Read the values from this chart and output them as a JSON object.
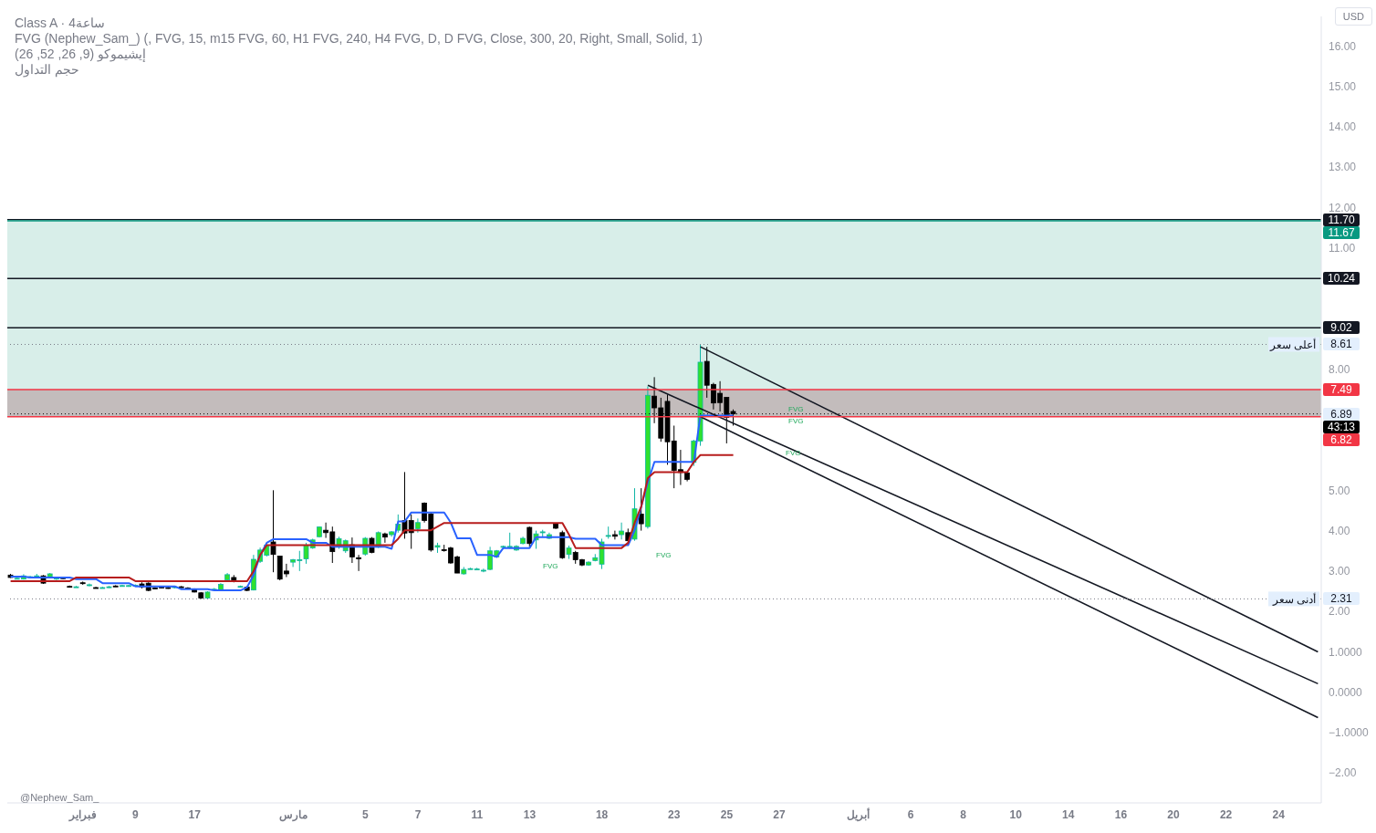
{
  "chart_data": {
    "type": "candlestick",
    "title": "Class A · 4ساعة",
    "subtitle": "FVG (Nephew_Sam_) (, FVG, 15, m15 FVG, 60, H1 FVG, 240, H4 FVG, D, D FVG, Close, 300, 20, Right, Small, Solid, 1)",
    "categories": [
      null,
      null,
      null,
      null,
      null,
      null,
      null,
      null,
      null,
      null,
      null,
      "فبراير",
      null,
      null,
      null,
      null,
      null,
      null,
      null,
      "9",
      null,
      null,
      null,
      null,
      null,
      null,
      null,
      null,
      "17",
      null,
      null,
      null,
      null,
      null,
      null,
      null,
      null,
      null,
      null,
      null,
      null,
      null,
      null,
      "مارس",
      null,
      null,
      null,
      null,
      null,
      null,
      null,
      null,
      null,
      null,
      "5",
      null,
      null,
      null,
      null,
      null,
      null,
      null,
      "7",
      null,
      null,
      null,
      null,
      null,
      null,
      null,
      null,
      "11",
      null,
      null,
      null,
      null,
      null,
      null,
      null,
      "13",
      null,
      null,
      null,
      null,
      null,
      null,
      null,
      null,
      null,
      null,
      "18",
      null,
      null,
      null,
      null,
      null,
      null,
      null,
      null,
      null,
      null,
      "23",
      null,
      null,
      null,
      null,
      null,
      null,
      null,
      "25",
      null,
      null,
      null,
      null,
      null,
      null,
      null,
      "27",
      null,
      null,
      null,
      null,
      null,
      null,
      null,
      null,
      null,
      null,
      null,
      "أبريل",
      null,
      null,
      null,
      null,
      null,
      null,
      null,
      "6",
      null,
      null,
      null,
      null,
      null,
      null,
      null,
      "8",
      null,
      null,
      null,
      null,
      null,
      null,
      null,
      "10",
      null,
      null,
      null,
      null,
      null,
      null,
      null,
      "14",
      null,
      null,
      null,
      null,
      null,
      null,
      null,
      "16",
      null,
      null,
      null,
      null,
      null,
      null,
      null,
      "20",
      null,
      null,
      null,
      null,
      null,
      null,
      null,
      "22",
      null,
      null,
      null,
      null,
      null,
      null,
      null,
      "24",
      null,
      null,
      null,
      null,
      null,
      null
    ],
    "ohlc": [
      [
        2.9,
        2.93,
        2.83,
        2.84
      ],
      [
        2.82,
        2.84,
        2.8,
        2.82
      ],
      [
        2.8,
        2.92,
        2.79,
        2.88
      ],
      [
        2.86,
        2.88,
        2.84,
        2.86
      ],
      [
        2.88,
        2.93,
        2.85,
        2.88
      ],
      [
        2.88,
        2.9,
        2.68,
        2.7
      ],
      [
        2.86,
        2.95,
        2.84,
        2.93
      ],
      [
        2.8,
        2.86,
        2.78,
        2.84
      ],
      [
        2.84,
        2.86,
        2.8,
        2.81
      ],
      [
        2.62,
        2.64,
        2.59,
        2.61
      ],
      [
        2.61,
        2.63,
        2.59,
        2.61
      ],
      [
        2.71,
        2.74,
        2.66,
        2.7
      ],
      [
        2.66,
        2.69,
        2.62,
        2.66
      ],
      [
        2.59,
        2.61,
        2.57,
        2.58
      ],
      [
        2.59,
        2.61,
        2.57,
        2.59
      ],
      [
        2.61,
        2.63,
        2.58,
        2.61
      ],
      [
        2.63,
        2.65,
        2.61,
        2.62
      ],
      [
        2.64,
        2.66,
        2.62,
        2.64
      ],
      [
        2.63,
        2.66,
        2.61,
        2.64
      ],
      [
        2.64,
        2.67,
        2.62,
        2.65
      ],
      [
        2.68,
        2.72,
        2.57,
        2.6
      ],
      [
        2.7,
        2.72,
        2.5,
        2.52
      ],
      [
        2.58,
        2.6,
        2.55,
        2.57
      ],
      [
        2.6,
        2.62,
        2.57,
        2.59
      ],
      [
        2.59,
        2.61,
        2.56,
        2.58
      ],
      [
        2.6,
        2.63,
        2.57,
        2.61
      ],
      [
        2.61,
        2.63,
        2.58,
        2.6
      ],
      [
        2.58,
        2.6,
        2.55,
        2.57
      ],
      [
        2.55,
        2.57,
        2.47,
        2.48
      ],
      [
        2.46,
        2.48,
        2.31,
        2.33
      ],
      [
        2.33,
        2.5,
        2.31,
        2.48
      ],
      [
        2.55,
        2.58,
        2.53,
        2.55
      ],
      [
        2.53,
        2.7,
        2.5,
        2.67
      ],
      [
        2.78,
        2.95,
        2.76,
        2.91
      ],
      [
        2.84,
        2.9,
        2.72,
        2.74
      ],
      [
        2.62,
        2.64,
        2.6,
        2.62
      ],
      [
        2.6,
        2.63,
        2.5,
        2.52
      ],
      [
        2.53,
        3.4,
        2.52,
        3.29
      ],
      [
        3.24,
        3.58,
        3.2,
        3.52
      ],
      [
        3.39,
        3.66,
        3.36,
        3.64
      ],
      [
        3.72,
        5.0,
        2.97,
        3.41
      ],
      [
        3.37,
        3.37,
        2.77,
        2.8
      ],
      [
        3.0,
        3.18,
        2.85,
        2.93
      ],
      [
        3.22,
        3.3,
        3.1,
        3.28
      ],
      [
        3.27,
        3.5,
        3.0,
        3.28
      ],
      [
        3.3,
        3.7,
        3.18,
        3.64
      ],
      [
        3.57,
        3.8,
        3.55,
        3.77
      ],
      [
        3.85,
        4.1,
        3.83,
        4.09
      ],
      [
        4.01,
        4.2,
        3.82,
        3.95
      ],
      [
        3.97,
        4.1,
        3.2,
        3.48
      ],
      [
        3.6,
        3.85,
        3.55,
        3.8
      ],
      [
        3.5,
        3.78,
        3.45,
        3.75
      ],
      [
        3.65,
        3.83,
        3.2,
        3.35
      ],
      [
        3.33,
        3.4,
        3.0,
        3.3
      ],
      [
        3.42,
        3.84,
        3.38,
        3.81
      ],
      [
        3.81,
        3.84,
        3.44,
        3.46
      ],
      [
        3.59,
        3.98,
        3.57,
        3.95
      ],
      [
        3.92,
        3.95,
        3.7,
        3.84
      ],
      [
        3.9,
        3.99,
        3.85,
        3.97
      ],
      [
        4.01,
        4.4,
        3.95,
        4.16
      ],
      [
        4.25,
        5.45,
        3.8,
        3.94
      ],
      [
        4.25,
        4.4,
        3.55,
        3.95
      ],
      [
        4.05,
        4.3,
        3.95,
        4.2
      ],
      [
        4.68,
        4.7,
        4.2,
        4.25
      ],
      [
        4.41,
        4.45,
        3.48,
        3.52
      ],
      [
        3.59,
        3.7,
        3.45,
        3.63
      ],
      [
        3.53,
        3.65,
        3.48,
        3.52
      ],
      [
        3.57,
        3.6,
        3.18,
        3.2
      ],
      [
        3.35,
        3.38,
        2.95,
        2.95
      ],
      [
        2.93,
        3.1,
        2.91,
        3.04
      ],
      [
        3.06,
        3.08,
        3.04,
        3.06
      ],
      [
        3.05,
        3.08,
        3.03,
        3.05
      ],
      [
        3.02,
        3.06,
        2.97,
        3.02
      ],
      [
        3.04,
        3.6,
        3.02,
        3.5
      ],
      [
        3.35,
        3.52,
        3.33,
        3.5
      ],
      [
        3.61,
        3.63,
        3.59,
        3.61
      ],
      [
        3.61,
        3.95,
        3.55,
        3.61
      ],
      [
        3.52,
        3.64,
        3.5,
        3.61
      ],
      [
        3.68,
        3.85,
        3.66,
        3.81
      ],
      [
        4.08,
        4.1,
        3.6,
        3.68
      ],
      [
        3.77,
        4.0,
        3.55,
        3.92
      ],
      [
        3.97,
        4.02,
        3.83,
        3.97
      ],
      [
        3.81,
        3.95,
        3.79,
        3.9
      ],
      [
        4.17,
        4.19,
        4.04,
        4.06
      ],
      [
        3.95,
        4.0,
        3.3,
        3.33
      ],
      [
        3.41,
        3.63,
        3.3,
        3.57
      ],
      [
        3.46,
        3.5,
        3.18,
        3.28
      ],
      [
        3.28,
        3.3,
        3.12,
        3.15
      ],
      [
        3.15,
        3.24,
        3.13,
        3.22
      ],
      [
        3.26,
        3.42,
        3.24,
        3.33
      ],
      [
        3.17,
        3.8,
        3.05,
        3.72
      ],
      [
        3.88,
        4.1,
        3.8,
        3.88
      ],
      [
        3.9,
        4.0,
        3.78,
        3.86
      ],
      [
        3.9,
        4.2,
        3.78,
        3.99
      ],
      [
        3.95,
        4.05,
        3.75,
        3.75
      ],
      [
        3.79,
        5.05,
        3.75,
        4.54
      ],
      [
        4.41,
        5.05,
        4.0,
        4.17
      ],
      [
        4.1,
        7.57,
        4.05,
        7.35
      ],
      [
        7.33,
        7.8,
        6.66,
        7.04
      ],
      [
        7.04,
        7.29,
        6.2,
        6.29
      ],
      [
        7.2,
        7.37,
        5.63,
        6.2
      ],
      [
        6.22,
        6.6,
        5.05,
        5.49
      ],
      [
        5.51,
        6.0,
        5.13,
        5.44
      ],
      [
        5.43,
        5.44,
        5.22,
        5.27
      ],
      [
        5.69,
        6.25,
        5.6,
        6.22
      ],
      [
        6.22,
        8.61,
        6.1,
        8.17
      ],
      [
        8.19,
        8.55,
        7.29,
        7.6
      ],
      [
        7.62,
        7.66,
        7.0,
        7.16
      ],
      [
        7.4,
        7.7,
        6.95,
        7.17
      ],
      [
        7.3,
        7.3,
        6.16,
        6.8
      ],
      [
        6.95,
        7.0,
        6.6,
        6.89
      ],
      null,
      null,
      null,
      null,
      null,
      null,
      null,
      null,
      null,
      null,
      null,
      null,
      null,
      null,
      null,
      null,
      null,
      null,
      null,
      null,
      null,
      null,
      null,
      null,
      null,
      null,
      null,
      null,
      null,
      null,
      null,
      null,
      null,
      null,
      null,
      null,
      null,
      null,
      null,
      null,
      null,
      null,
      null,
      null,
      null,
      null,
      null,
      null,
      null,
      null,
      null,
      null,
      null,
      null,
      null,
      null,
      null,
      null,
      null,
      null,
      null,
      null,
      null,
      null,
      null,
      null,
      null,
      null,
      null,
      null,
      null,
      null,
      null,
      null,
      null,
      null,
      null,
      null,
      null,
      null,
      null,
      null,
      null,
      null,
      null,
      null,
      null,
      null,
      null
    ],
    "series": [
      {
        "type": "line",
        "color": "#2962ff",
        "values": [
          2.86,
          2.86,
          2.86,
          2.84,
          2.84,
          2.84,
          2.84,
          2.84,
          2.84,
          2.84,
          2.8,
          2.8,
          2.8,
          2.8,
          2.7,
          2.7,
          2.7,
          2.7,
          2.7,
          2.62,
          2.62,
          2.62,
          2.62,
          2.62,
          2.62,
          2.62,
          2.55,
          2.55,
          2.55,
          2.55,
          2.55,
          2.52,
          2.52,
          2.52,
          2.52,
          2.52,
          2.6,
          2.9,
          3.4,
          3.7,
          3.79,
          3.79,
          3.79,
          3.79,
          3.79,
          3.79,
          3.7,
          3.7,
          3.7,
          3.6,
          3.6,
          3.6,
          3.6,
          3.6,
          3.6,
          3.6,
          3.6,
          3.6,
          3.55,
          4.23,
          4.23,
          4.45,
          4.45,
          4.45,
          4.45,
          4.45,
          4.45,
          4.2,
          3.81,
          3.81,
          3.81,
          3.4,
          3.4,
          3.4,
          3.35,
          3.57,
          3.57,
          3.57,
          3.57,
          3.57,
          3.84,
          3.84,
          3.84,
          3.84,
          3.84,
          3.84,
          3.8,
          3.8,
          3.8,
          3.8,
          3.64,
          3.64,
          3.64,
          3.64,
          3.64,
          4.01,
          4.6,
          5.2,
          5.7,
          5.7,
          5.7,
          5.7,
          5.7,
          5.7,
          5.7,
          6.85,
          6.85,
          6.85,
          6.85,
          6.85,
          6.85,
          null,
          null,
          null,
          null,
          null,
          null,
          null,
          null,
          null,
          null,
          null,
          null,
          null,
          null,
          null,
          null,
          null,
          null,
          null,
          null,
          null,
          null,
          null,
          null,
          null,
          null,
          null,
          null,
          null,
          null,
          null,
          null,
          null,
          null,
          null,
          null,
          null,
          null,
          null,
          null,
          null,
          null,
          null,
          null,
          null,
          null,
          null,
          null,
          null,
          null,
          null,
          null,
          null,
          null,
          null,
          null,
          null,
          null,
          null,
          null,
          null,
          null,
          null,
          null,
          null,
          null,
          null,
          null,
          null,
          null,
          null,
          null,
          null,
          null,
          null,
          null,
          null,
          null,
          null,
          null,
          null,
          null,
          null,
          null,
          null,
          null,
          null,
          null,
          null
        ]
      },
      {
        "type": "line",
        "color": "#b71c1c",
        "values": [
          2.75,
          2.75,
          2.75,
          2.75,
          2.75,
          2.75,
          2.75,
          2.75,
          2.75,
          2.75,
          2.84,
          2.84,
          2.84,
          2.84,
          2.84,
          2.84,
          2.84,
          2.84,
          2.84,
          2.75,
          2.75,
          2.75,
          2.75,
          2.75,
          2.75,
          2.75,
          2.75,
          2.75,
          2.75,
          2.75,
          2.75,
          2.75,
          2.75,
          2.75,
          2.75,
          2.75,
          2.75,
          3.0,
          3.4,
          3.64,
          3.64,
          3.64,
          3.64,
          3.64,
          3.64,
          3.64,
          3.64,
          3.64,
          3.64,
          3.64,
          3.64,
          3.64,
          3.64,
          3.64,
          3.64,
          3.64,
          3.64,
          3.64,
          3.64,
          3.8,
          4.01,
          4.01,
          4.01,
          4.01,
          4.01,
          4.1,
          4.19,
          4.19,
          4.19,
          4.19,
          4.19,
          4.19,
          4.19,
          4.19,
          4.19,
          4.19,
          4.19,
          4.19,
          4.19,
          4.19,
          4.19,
          4.19,
          4.19,
          4.19,
          4.19,
          3.9,
          3.57,
          3.57,
          3.57,
          3.57,
          3.57,
          3.57,
          3.57,
          3.57,
          3.7,
          4.2,
          4.6,
          5.3,
          5.45,
          5.45,
          5.45,
          5.45,
          5.45,
          5.45,
          5.7,
          5.87,
          5.87,
          5.87,
          5.87,
          5.87,
          5.87,
          null,
          null,
          null,
          null,
          null,
          null,
          null,
          null,
          null,
          null,
          null,
          null,
          null,
          null,
          null,
          null,
          null,
          null,
          null,
          null,
          null,
          null,
          null,
          null,
          null,
          null,
          null,
          null,
          null,
          null,
          null,
          null,
          null,
          null,
          null,
          null,
          null,
          null,
          null,
          null,
          null,
          null,
          null,
          null,
          null,
          null,
          null,
          null,
          null,
          null,
          null,
          null,
          null,
          null,
          null,
          null,
          null,
          null,
          null,
          null,
          null,
          null,
          null,
          null,
          null,
          null,
          null,
          null,
          null,
          null,
          null,
          null,
          null,
          null,
          null,
          null,
          null,
          null,
          null,
          null,
          null,
          null,
          null,
          null,
          null,
          null,
          null,
          null,
          null
        ]
      },
      {
        "type": "line",
        "color": "#131722",
        "values": [
          null,
          null,
          null,
          null,
          null,
          null,
          null,
          null,
          null,
          null,
          null,
          null,
          null,
          null,
          null,
          null,
          null,
          null,
          null,
          null,
          null,
          null,
          null,
          null,
          null,
          null,
          null,
          null,
          null,
          null,
          null,
          null,
          null,
          null,
          null,
          null,
          null,
          null,
          null,
          null,
          null,
          null,
          null,
          null,
          null,
          null,
          null,
          null,
          null,
          null,
          null,
          null,
          null,
          null,
          null,
          null,
          null,
          null,
          null,
          null,
          null,
          null,
          null,
          null,
          null,
          null,
          null,
          null,
          null,
          null,
          null,
          null,
          null,
          null,
          null,
          null,
          null,
          null,
          null,
          null,
          null,
          null,
          null,
          null,
          null,
          null,
          null,
          null,
          null,
          null,
          null,
          null,
          null,
          null,
          null,
          null,
          null,
          null,
          null,
          null,
          null,
          null,
          null,
          null,
          null,
          8.55,
          null,
          null,
          null,
          null,
          null,
          null,
          null,
          null,
          null,
          null,
          null,
          null,
          null,
          null,
          null,
          null,
          null,
          null,
          null,
          null,
          null,
          null,
          null,
          null,
          null,
          null,
          null,
          null,
          null,
          null,
          null,
          null,
          null,
          null,
          null,
          null,
          null,
          null,
          null,
          null,
          null,
          null,
          null,
          null,
          null,
          null,
          null,
          null,
          null,
          null,
          null,
          null,
          null,
          null,
          null,
          null,
          null,
          null,
          null,
          null,
          null,
          null,
          null,
          null,
          null,
          null,
          null,
          null,
          null,
          null,
          null,
          null,
          null,
          null,
          null,
          null,
          null,
          null,
          null,
          null,
          null,
          null,
          null,
          null,
          null,
          null,
          null,
          null,
          null,
          null,
          null,
          null,
          null,
          1.0
        ]
      },
      {
        "type": "line",
        "color": "#131722",
        "values": [
          null,
          null,
          null,
          null,
          null,
          null,
          null,
          null,
          null,
          null,
          null,
          null,
          null,
          null,
          null,
          null,
          null,
          null,
          null,
          null,
          null,
          null,
          null,
          null,
          null,
          null,
          null,
          null,
          null,
          null,
          null,
          null,
          null,
          null,
          null,
          null,
          null,
          null,
          null,
          null,
          null,
          null,
          null,
          null,
          null,
          null,
          null,
          null,
          null,
          null,
          null,
          null,
          null,
          null,
          null,
          null,
          null,
          null,
          null,
          null,
          null,
          null,
          null,
          null,
          null,
          null,
          null,
          null,
          null,
          null,
          null,
          null,
          null,
          null,
          null,
          null,
          null,
          null,
          null,
          null,
          null,
          null,
          null,
          null,
          null,
          null,
          null,
          null,
          null,
          null,
          null,
          null,
          null,
          null,
          null,
          null,
          null,
          7.6,
          null,
          null,
          null,
          null,
          null,
          null,
          null,
          null,
          null,
          null,
          null,
          null,
          null,
          null,
          null,
          null,
          null,
          null,
          null,
          null,
          null,
          null,
          null,
          null,
          null,
          null,
          null,
          null,
          null,
          null,
          null,
          null,
          null,
          null,
          null,
          null,
          null,
          null,
          null,
          null,
          null,
          null,
          null,
          null,
          null,
          null,
          null,
          null,
          null,
          null,
          null,
          null,
          null,
          null,
          null,
          null,
          null,
          null,
          null,
          null,
          null,
          null,
          null,
          null,
          null,
          null,
          null,
          null,
          null,
          null,
          null,
          null,
          null,
          null,
          null,
          null,
          null,
          null,
          null,
          null,
          null,
          null,
          null,
          null,
          null,
          null,
          null,
          null,
          null,
          null,
          null,
          null,
          null,
          null,
          null,
          null,
          null,
          null,
          null,
          null,
          null,
          0.21
        ]
      },
      {
        "type": "line",
        "color": "#131722",
        "values": [
          null,
          null,
          null,
          null,
          null,
          null,
          null,
          null,
          null,
          null,
          null,
          null,
          null,
          null,
          null,
          null,
          null,
          null,
          null,
          null,
          null,
          null,
          null,
          null,
          null,
          null,
          null,
          null,
          null,
          null,
          null,
          null,
          null,
          null,
          null,
          null,
          null,
          null,
          null,
          null,
          null,
          null,
          null,
          null,
          null,
          null,
          null,
          null,
          null,
          null,
          null,
          null,
          null,
          null,
          null,
          null,
          null,
          null,
          null,
          null,
          null,
          null,
          null,
          null,
          null,
          null,
          null,
          null,
          null,
          null,
          null,
          null,
          null,
          null,
          null,
          null,
          null,
          null,
          null,
          null,
          null,
          null,
          null,
          null,
          null,
          null,
          null,
          null,
          null,
          null,
          null,
          null,
          null,
          null,
          null,
          null,
          null,
          null,
          null,
          null,
          null,
          null,
          null,
          null,
          null,
          6.82,
          null,
          null,
          null,
          null,
          null,
          null,
          null,
          null,
          null,
          null,
          null,
          null,
          null,
          null,
          null,
          null,
          null,
          null,
          null,
          null,
          null,
          null,
          null,
          null,
          null,
          null,
          null,
          null,
          null,
          null,
          null,
          null,
          null,
          null,
          null,
          null,
          null,
          null,
          null,
          null,
          null,
          null,
          null,
          null,
          null,
          null,
          null,
          null,
          null,
          null,
          null,
          null,
          null,
          null,
          null,
          null,
          null,
          null,
          null,
          null,
          null,
          null,
          null,
          null,
          null,
          null,
          null,
          null,
          null,
          null,
          null,
          null,
          null,
          null,
          null,
          null,
          null,
          null,
          null,
          null,
          null,
          null,
          null,
          null,
          null,
          null,
          null,
          null,
          null,
          null,
          null,
          null,
          null,
          -0.63
        ]
      }
    ],
    "ylim": [
      -2.74,
      16.73
    ],
    "yticks": [
      {
        "value": 16,
        "label": "16.00"
      },
      {
        "value": 15,
        "label": "15.00"
      },
      {
        "value": 14,
        "label": "14.00"
      },
      {
        "value": 13,
        "label": "13.00"
      },
      {
        "value": 12,
        "label": "12.00"
      },
      {
        "value": 11,
        "label": "11.00"
      },
      {
        "value": 8,
        "label": "8.00"
      },
      {
        "value": 5,
        "label": "5.00"
      },
      {
        "value": 4,
        "label": "4.00"
      },
      {
        "value": 3,
        "label": "3.00"
      },
      {
        "value": 2,
        "label": "2.00"
      },
      {
        "value": 1,
        "label": "1.0000"
      },
      {
        "value": 0,
        "label": "0.0000"
      },
      {
        "value": -1,
        "label": "−1.0000"
      },
      {
        "value": -2,
        "label": "−2.00"
      }
    ],
    "bands": [
      {
        "axis": "y",
        "from": 7.49,
        "to": 11.67,
        "color": "#d1ebe5"
      },
      {
        "axis": "y",
        "from": 6.82,
        "to": 7.49,
        "color": "#b8b0b0"
      }
    ],
    "ref_lines": [
      {
        "axis": "y",
        "value": 11.7,
        "color": "#131722",
        "line_style": "solid"
      },
      {
        "axis": "y",
        "value": 11.67,
        "color": "#089981",
        "line_style": "solid"
      },
      {
        "axis": "y",
        "value": 10.24,
        "color": "#131722",
        "line_style": "solid"
      },
      {
        "axis": "y",
        "value": 9.02,
        "color": "#131722",
        "line_style": "solid"
      },
      {
        "axis": "y",
        "value": 8.61,
        "label": "أعلى سعر",
        "color": "#787b86",
        "line_style": "dotted"
      },
      {
        "axis": "y",
        "value": 7.49,
        "color": "#f23645",
        "line_style": "solid"
      },
      {
        "axis": "y",
        "value": 6.89,
        "color": "#000000",
        "line_style": "dotted"
      },
      {
        "axis": "y",
        "value": 6.82,
        "color": "#f23645",
        "line_style": "solid"
      },
      {
        "axis": "y",
        "value": 2.31,
        "label": "أدنى سعر",
        "color": "#787b86",
        "line_style": "dotted"
      }
    ],
    "annotations": [
      "إيشيموكو (9, 26, 52, 26)",
      "حجم التداول",
      "USD",
      "@Nephew_Sam_",
      "FVG",
      "FVG",
      "FVG",
      "FVG",
      "FVG",
      {
        "text": "11.70",
        "y": 11.7
      },
      "11.67",
      {
        "text": "10.24",
        "y": 10.24
      },
      {
        "text": "9.02",
        "y": 9.02
      },
      {
        "text": "8.61",
        "y": 8.61
      },
      {
        "text": "7.49",
        "y": 7.49
      },
      {
        "text": "6.89",
        "y": 6.89
      },
      "43:13",
      "6.82",
      {
        "text": "2.31",
        "y": 2.31
      }
    ]
  }
}
